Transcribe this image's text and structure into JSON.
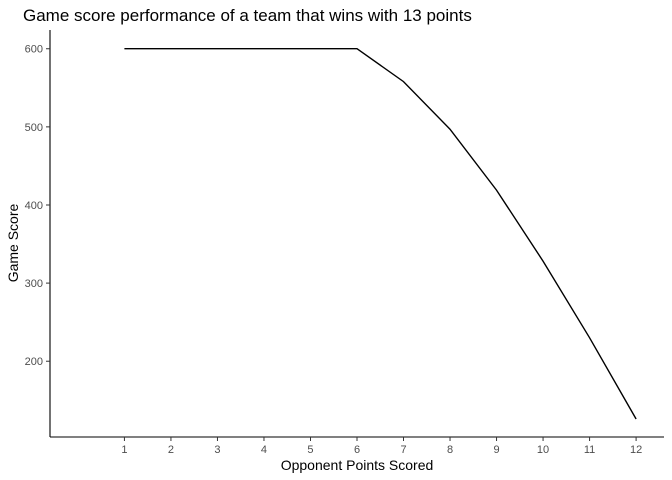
{
  "chart_data": {
    "type": "line",
    "title": "Game score performance of a team that wins with 13 points",
    "xlabel": "Opponent Points Scored",
    "ylabel": "Game Score",
    "x": [
      1,
      2,
      3,
      4,
      5,
      6,
      7,
      8,
      9,
      10,
      11,
      12
    ],
    "y": [
      600,
      600,
      600,
      600,
      600,
      600,
      558,
      497,
      419,
      328,
      230,
      126
    ],
    "xticks": [
      1,
      2,
      3,
      4,
      5,
      6,
      7,
      8,
      9,
      10,
      11,
      12
    ],
    "yticks": [
      200,
      300,
      400,
      500,
      600
    ],
    "xlim": [
      -0.6,
      12.6
    ],
    "ylim": [
      103,
      624
    ],
    "grid": false,
    "color": "#000000"
  }
}
